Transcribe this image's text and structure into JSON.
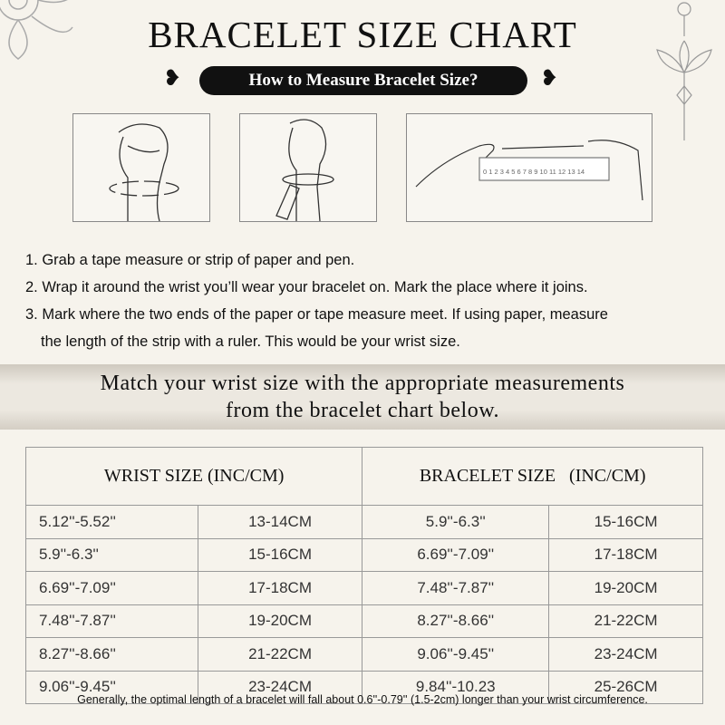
{
  "title": "BRACELET SIZE CHART",
  "subtitle": "How to Measure Bracelet Size?",
  "steps": [
    "1. Grab a tape measure or strip of paper and pen.",
    "2. Wrap it around the wrist you’ll wear your bracelet on. Mark the place where it joins.",
    "3. Mark where the two ends of the paper or tape measure meet. If using paper, measure",
    "the length of the strip with a ruler. This would be your wrist size."
  ],
  "banner": [
    "Match your wrist size with the appropriate measurements",
    "from the bracelet chart below."
  ],
  "table": {
    "headers": [
      "WRIST SIZE (INC/CM)",
      "BRACELET SIZE   (INC/CM)"
    ],
    "rows": [
      [
        "5.12''-5.52''",
        "13-14CM",
        "5.9''-6.3''",
        "15-16CM"
      ],
      [
        "5.9''-6.3''",
        "15-16CM",
        "6.69''-7.09''",
        "17-18CM"
      ],
      [
        "6.69''-7.09''",
        "17-18CM",
        "7.48''-7.87''",
        "19-20CM"
      ],
      [
        "7.48''-7.87''",
        "19-20CM",
        "8.27''-8.66''",
        "21-22CM"
      ],
      [
        "8.27''-8.66''",
        "21-22CM",
        "9.06''-9.45''",
        "23-24CM"
      ],
      [
        "9.06''-9.45''",
        "23-24CM",
        "9.84''-10.23",
        "25-26CM"
      ]
    ]
  },
  "footnote": "Generally, the optimal length of a bracelet will fall about 0.6''-0.79'' (1.5-2cm) longer than your wrist circumference.",
  "ruler_numbers": "0 1 2 3 4 5 6 7 8 9 10 11 12 13 14"
}
